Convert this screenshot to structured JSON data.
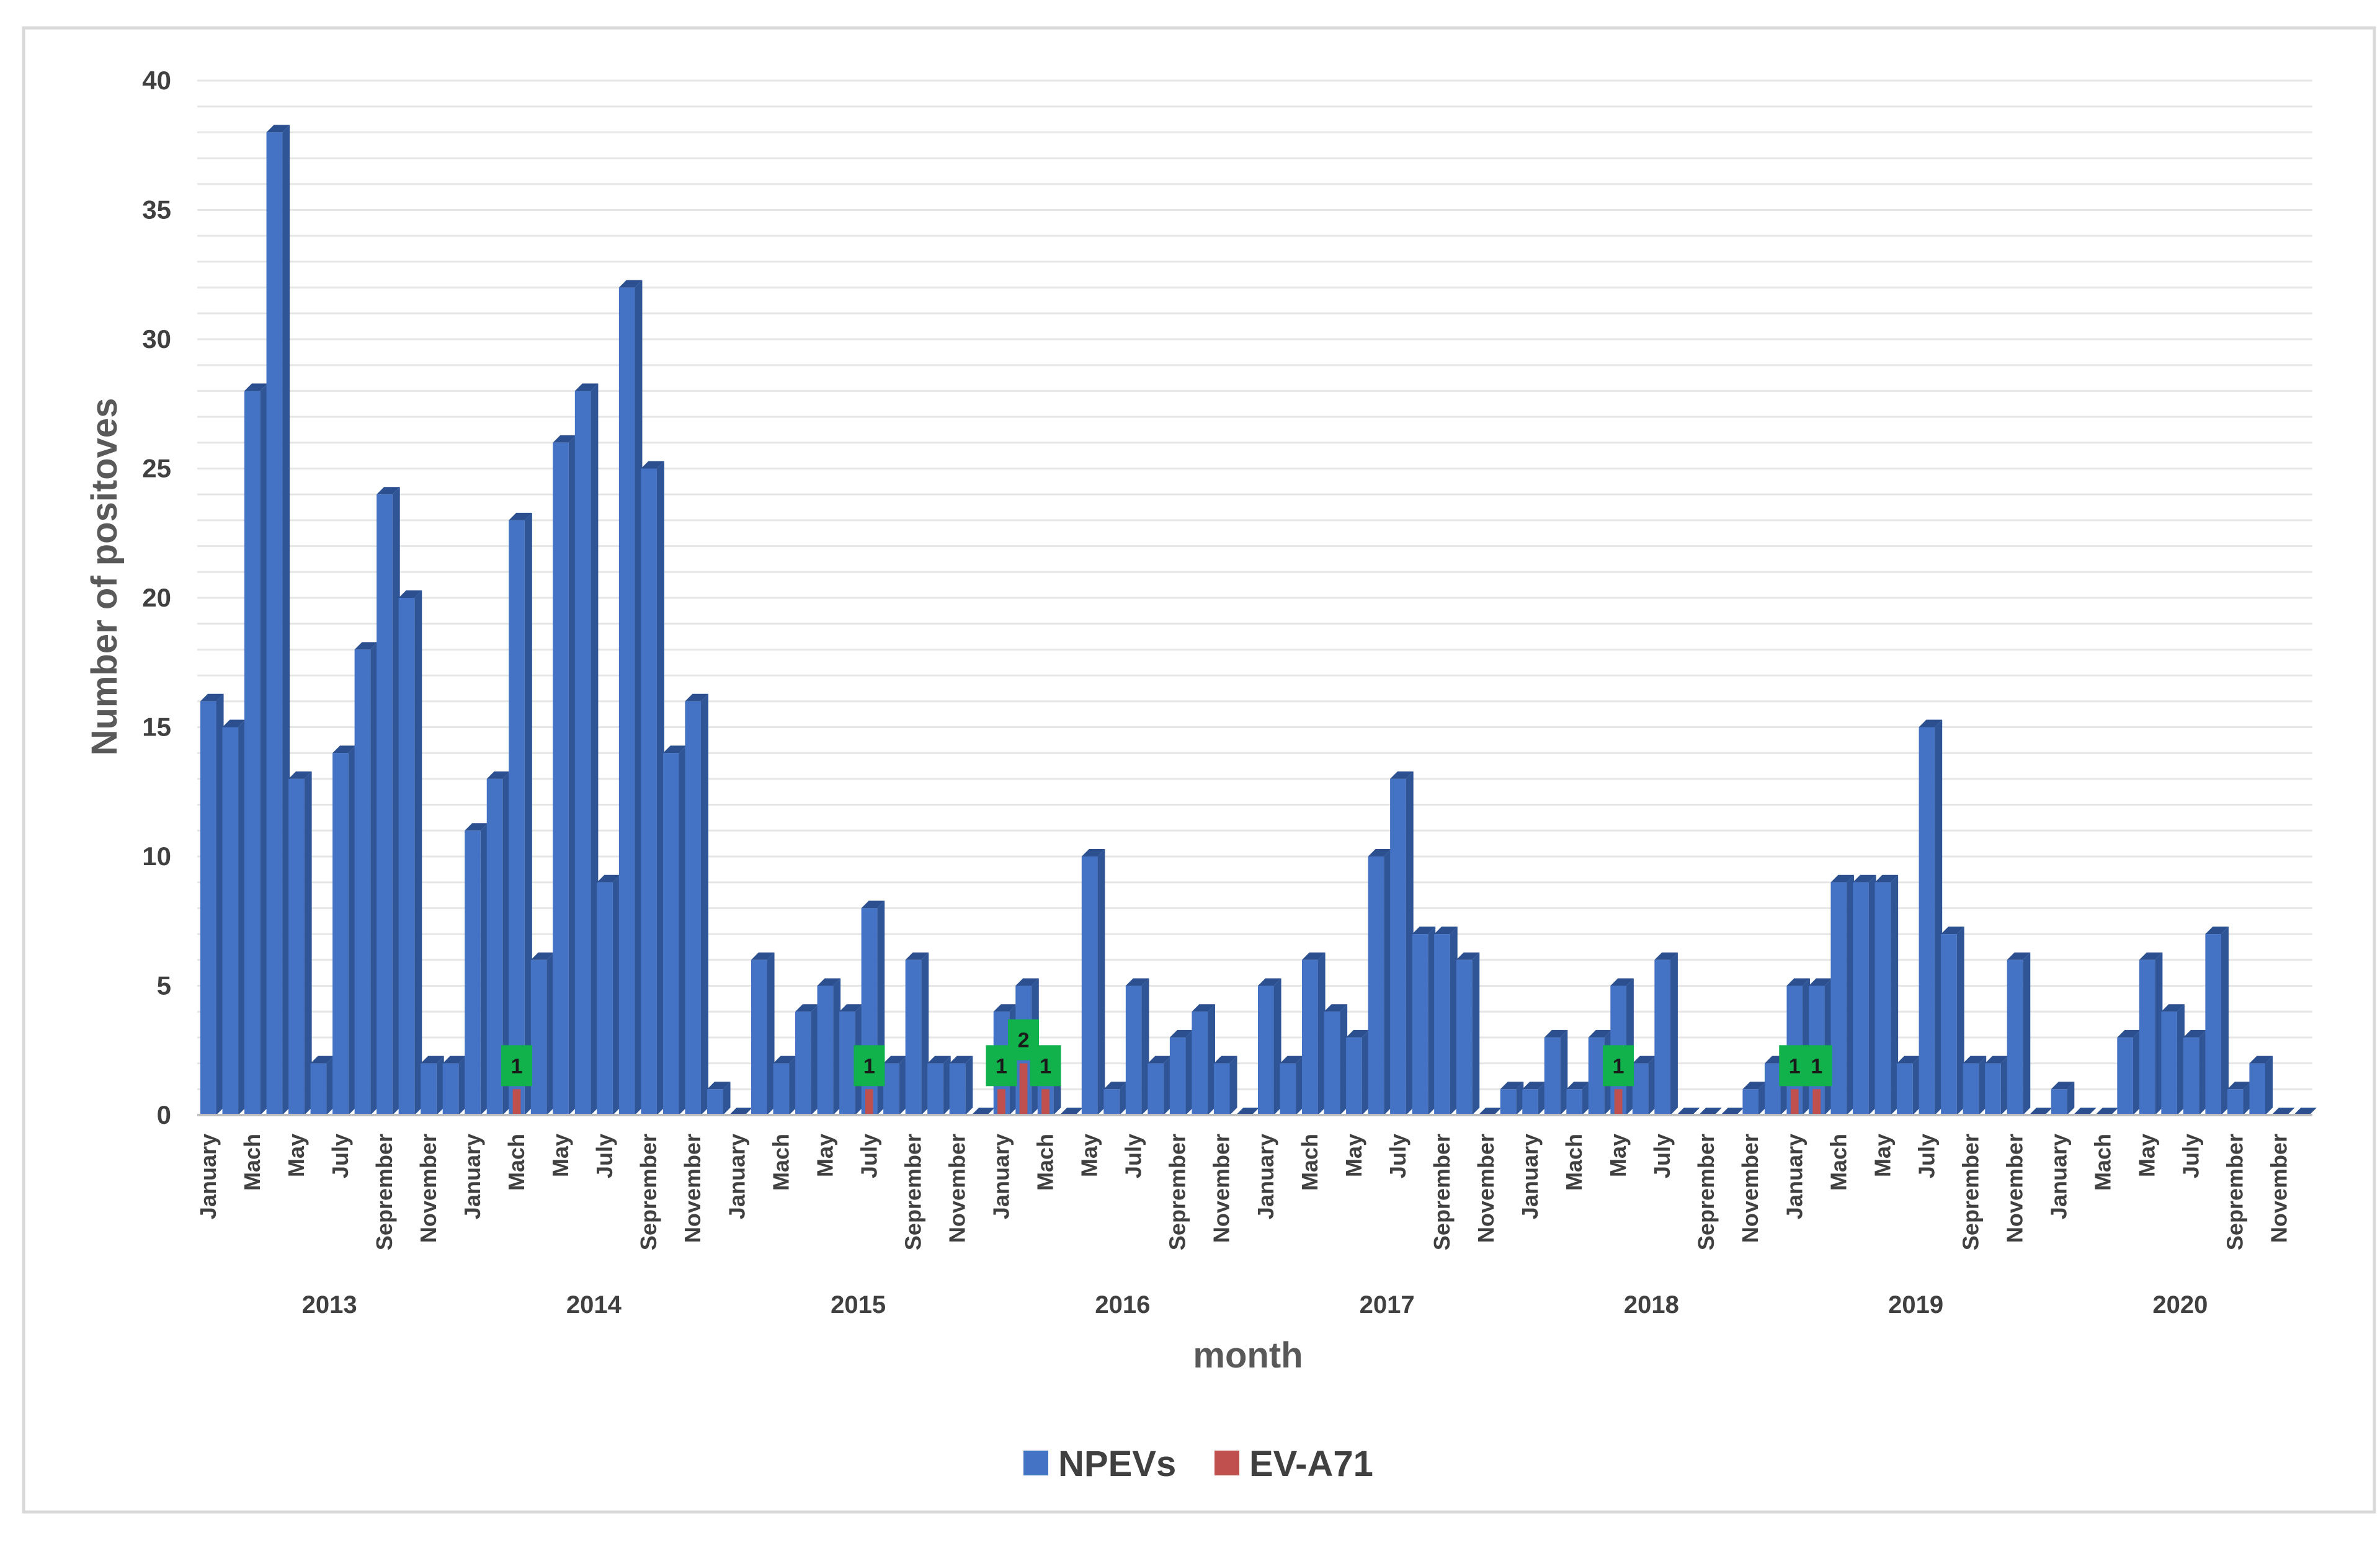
{
  "colors": {
    "npev": "#4472c4",
    "npev_top": "#2b4f8f",
    "npev_side": "#2f5597",
    "ev": "#c0504d",
    "label_bg": "#11b14c"
  },
  "chart_data": {
    "type": "bar",
    "title": "",
    "xlabel": "month",
    "ylabel": "Number of positoves",
    "ylim": [
      0,
      40
    ],
    "yticks": [
      "0",
      "5",
      "10",
      "15",
      "20",
      "25",
      "30",
      "35",
      "40"
    ],
    "grid": true,
    "legend_position": "bottom",
    "years": [
      "2013",
      "2014",
      "2015",
      "2016",
      "2017",
      "2018",
      "2019",
      "2020"
    ],
    "x_tick_labels": [
      "January",
      "Mach",
      "May",
      "July",
      "Seprember",
      "November"
    ],
    "categories": [
      "2013-01",
      "2013-02",
      "2013-03",
      "2013-04",
      "2013-05",
      "2013-06",
      "2013-07",
      "2013-08",
      "2013-09",
      "2013-10",
      "2013-11",
      "2013-12",
      "2014-01",
      "2014-02",
      "2014-03",
      "2014-04",
      "2014-05",
      "2014-06",
      "2014-07",
      "2014-08",
      "2014-09",
      "2014-10",
      "2014-11",
      "2014-12",
      "2015-01",
      "2015-02",
      "2015-03",
      "2015-04",
      "2015-05",
      "2015-06",
      "2015-07",
      "2015-08",
      "2015-09",
      "2015-10",
      "2015-11",
      "2015-12",
      "2016-01",
      "2016-02",
      "2016-03",
      "2016-04",
      "2016-05",
      "2016-06",
      "2016-07",
      "2016-08",
      "2016-09",
      "2016-10",
      "2016-11",
      "2016-12",
      "2017-01",
      "2017-02",
      "2017-03",
      "2017-04",
      "2017-05",
      "2017-06",
      "2017-07",
      "2017-08",
      "2017-09",
      "2017-10",
      "2017-11",
      "2017-12",
      "2018-01",
      "2018-02",
      "2018-03",
      "2018-04",
      "2018-05",
      "2018-06",
      "2018-07",
      "2018-08",
      "2018-09",
      "2018-10",
      "2018-11",
      "2018-12",
      "2019-01",
      "2019-02",
      "2019-03",
      "2019-04",
      "2019-05",
      "2019-06",
      "2019-07",
      "2019-08",
      "2019-09",
      "2019-10",
      "2019-11",
      "2019-12",
      "2020-01",
      "2020-02",
      "2020-03",
      "2020-04",
      "2020-05",
      "2020-06",
      "2020-07",
      "2020-08",
      "2020-09",
      "2020-10",
      "2020-11",
      "2020-12"
    ],
    "series": [
      {
        "name": "NPEVs",
        "values": [
          16,
          15,
          28,
          38,
          13,
          2,
          14,
          18,
          24,
          20,
          2,
          2,
          11,
          13,
          23,
          6,
          26,
          28,
          9,
          32,
          25,
          14,
          16,
          1,
          0,
          6,
          2,
          4,
          5,
          4,
          8,
          2,
          6,
          2,
          2,
          0,
          4,
          5,
          2,
          0,
          10,
          1,
          5,
          2,
          3,
          4,
          2,
          0,
          5,
          2,
          6,
          4,
          3,
          10,
          13,
          7,
          7,
          6,
          0,
          1,
          1,
          3,
          1,
          3,
          5,
          2,
          6,
          0,
          0,
          0,
          1,
          2,
          5,
          5,
          9,
          9,
          9,
          2,
          15,
          7,
          2,
          2,
          6,
          0,
          1,
          0,
          0,
          3,
          6,
          4,
          3,
          7,
          1,
          2,
          0,
          0
        ]
      },
      {
        "name": "EV-A71",
        "values": [
          0,
          0,
          0,
          0,
          0,
          0,
          0,
          0,
          0,
          0,
          0,
          0,
          0,
          0,
          1,
          0,
          0,
          0,
          0,
          0,
          0,
          0,
          0,
          0,
          0,
          0,
          0,
          0,
          0,
          0,
          1,
          0,
          0,
          0,
          0,
          0,
          1,
          2,
          1,
          0,
          0,
          0,
          0,
          0,
          0,
          0,
          0,
          0,
          0,
          0,
          0,
          0,
          0,
          0,
          0,
          0,
          0,
          0,
          0,
          0,
          0,
          0,
          0,
          0,
          1,
          0,
          0,
          0,
          0,
          0,
          0,
          0,
          1,
          1,
          0,
          0,
          0,
          0,
          0,
          0,
          0,
          0,
          0,
          0,
          0,
          0,
          0,
          0,
          0,
          0,
          0,
          0,
          0,
          0,
          0,
          0
        ]
      }
    ],
    "data_labels": [
      {
        "category": "2014-03",
        "series": "EV-A71",
        "text": "1"
      },
      {
        "category": "2015-07",
        "series": "EV-A71",
        "text": "1"
      },
      {
        "category": "2016-01",
        "series": "EV-A71",
        "text": "1"
      },
      {
        "category": "2016-02",
        "series": "EV-A71",
        "text": "2"
      },
      {
        "category": "2016-03",
        "series": "EV-A71",
        "text": "1"
      },
      {
        "category": "2018-05",
        "series": "EV-A71",
        "text": "1"
      },
      {
        "category": "2019-01",
        "series": "EV-A71",
        "text": "1"
      },
      {
        "category": "2019-02",
        "series": "EV-A71",
        "text": "1"
      }
    ],
    "legend": [
      "NPEVs",
      "EV-A71"
    ]
  }
}
